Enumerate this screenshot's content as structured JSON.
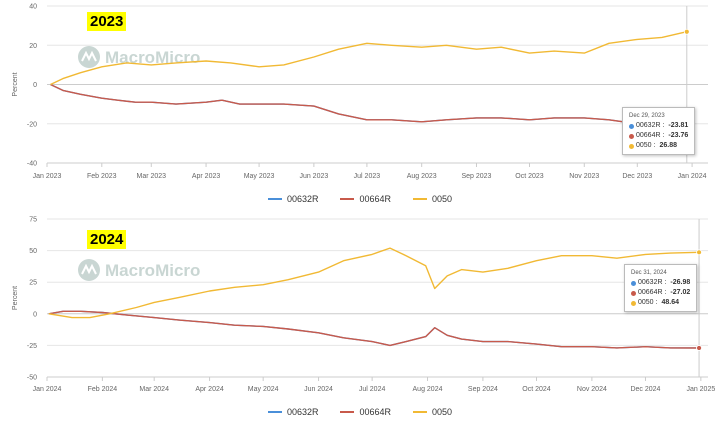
{
  "colors": {
    "s00632R": "#4a8fd9",
    "s00664R": "#c85a4b",
    "s0050": "#f1b934",
    "watermark": "#c9d6d3",
    "badge": "#ffff00"
  },
  "watermark_text": "MacroMicro",
  "legend": [
    "00632R",
    "00664R",
    "0050"
  ],
  "chart_data": [
    {
      "type": "line",
      "badge": "2023",
      "ylabel": "Percent",
      "ylim": [
        -40,
        40
      ],
      "yticks": [
        40,
        20,
        0,
        -20,
        -40
      ],
      "xlim": [
        "2023-01-01",
        "2024-01-10"
      ],
      "xticks": [
        {
          "date": "2023-01-01",
          "label": "Jan 2023"
        },
        {
          "date": "2023-02-01",
          "label": "Feb 2023"
        },
        {
          "date": "2023-03-01",
          "label": "Mar 2023"
        },
        {
          "date": "2023-04-01",
          "label": "Apr 2023"
        },
        {
          "date": "2023-05-01",
          "label": "May 2023"
        },
        {
          "date": "2023-06-01",
          "label": "Jun 2023"
        },
        {
          "date": "2023-07-01",
          "label": "Jul 2023"
        },
        {
          "date": "2023-08-01",
          "label": "Aug 2023"
        },
        {
          "date": "2023-09-01",
          "label": "Sep 2023"
        },
        {
          "date": "2023-10-01",
          "label": "Oct 2023"
        },
        {
          "date": "2023-11-01",
          "label": "Nov 2023"
        },
        {
          "date": "2023-12-01",
          "label": "Dec 2023"
        },
        {
          "date": "2024-01-01",
          "label": "Jan 2024"
        }
      ],
      "series": [
        {
          "name": "00632R",
          "color": "#4a8fd9",
          "points": [
            [
              "2023-01-03",
              0
            ],
            [
              "2023-01-10",
              -3
            ],
            [
              "2023-01-20",
              -5
            ],
            [
              "2023-02-01",
              -7
            ],
            [
              "2023-02-10",
              -8
            ],
            [
              "2023-02-20",
              -9
            ],
            [
              "2023-03-01",
              -9
            ],
            [
              "2023-03-15",
              -10
            ],
            [
              "2023-04-01",
              -9
            ],
            [
              "2023-04-10",
              -8
            ],
            [
              "2023-04-20",
              -10
            ],
            [
              "2023-05-01",
              -10
            ],
            [
              "2023-05-15",
              -10
            ],
            [
              "2023-06-01",
              -11
            ],
            [
              "2023-06-15",
              -15
            ],
            [
              "2023-07-01",
              -18
            ],
            [
              "2023-07-15",
              -18
            ],
            [
              "2023-08-01",
              -19
            ],
            [
              "2023-08-15",
              -18
            ],
            [
              "2023-09-01",
              -17
            ],
            [
              "2023-09-15",
              -17
            ],
            [
              "2023-10-01",
              -18
            ],
            [
              "2023-10-15",
              -17
            ],
            [
              "2023-11-01",
              -17
            ],
            [
              "2023-11-15",
              -18
            ],
            [
              "2023-12-01",
              -20
            ],
            [
              "2023-12-15",
              -21
            ],
            [
              "2023-12-29",
              -23.81
            ]
          ]
        },
        {
          "name": "00664R",
          "color": "#c85a4b",
          "points": [
            [
              "2023-01-03",
              0
            ],
            [
              "2023-01-10",
              -3
            ],
            [
              "2023-01-20",
              -5
            ],
            [
              "2023-02-01",
              -7
            ],
            [
              "2023-02-10",
              -8
            ],
            [
              "2023-02-20",
              -9
            ],
            [
              "2023-03-01",
              -9
            ],
            [
              "2023-03-15",
              -10
            ],
            [
              "2023-04-01",
              -9
            ],
            [
              "2023-04-10",
              -8
            ],
            [
              "2023-04-20",
              -10
            ],
            [
              "2023-05-01",
              -10
            ],
            [
              "2023-05-15",
              -10
            ],
            [
              "2023-06-01",
              -11
            ],
            [
              "2023-06-15",
              -15
            ],
            [
              "2023-07-01",
              -18
            ],
            [
              "2023-07-15",
              -18
            ],
            [
              "2023-08-01",
              -19
            ],
            [
              "2023-08-15",
              -18
            ],
            [
              "2023-09-01",
              -17
            ],
            [
              "2023-09-15",
              -17
            ],
            [
              "2023-10-01",
              -18
            ],
            [
              "2023-10-15",
              -17
            ],
            [
              "2023-11-01",
              -17
            ],
            [
              "2023-11-15",
              -18
            ],
            [
              "2023-12-01",
              -20
            ],
            [
              "2023-12-15",
              -21
            ],
            [
              "2023-12-29",
              -23.76
            ]
          ]
        },
        {
          "name": "0050",
          "color": "#f1b934",
          "points": [
            [
              "2023-01-03",
              0
            ],
            [
              "2023-01-10",
              3
            ],
            [
              "2023-01-20",
              6
            ],
            [
              "2023-02-01",
              9
            ],
            [
              "2023-02-15",
              11
            ],
            [
              "2023-03-01",
              10
            ],
            [
              "2023-03-15",
              11
            ],
            [
              "2023-04-01",
              12
            ],
            [
              "2023-04-15",
              11
            ],
            [
              "2023-05-01",
              9
            ],
            [
              "2023-05-15",
              10
            ],
            [
              "2023-06-01",
              14
            ],
            [
              "2023-06-15",
              18
            ],
            [
              "2023-07-01",
              21
            ],
            [
              "2023-07-15",
              20
            ],
            [
              "2023-08-01",
              19
            ],
            [
              "2023-08-15",
              20
            ],
            [
              "2023-09-01",
              18
            ],
            [
              "2023-09-15",
              19
            ],
            [
              "2023-10-01",
              16
            ],
            [
              "2023-10-15",
              17
            ],
            [
              "2023-11-01",
              16
            ],
            [
              "2023-11-15",
              21
            ],
            [
              "2023-12-01",
              23
            ],
            [
              "2023-12-15",
              24
            ],
            [
              "2023-12-29",
              26.88
            ]
          ]
        }
      ],
      "tooltip": {
        "date": "Dec 29, 2023",
        "rows": [
          {
            "name": "00632R",
            "value": "-23.81",
            "color": "#4a8fd9"
          },
          {
            "name": "00664R",
            "value": "-23.76",
            "color": "#c85a4b"
          },
          {
            "name": "0050",
            "value": "26.88",
            "color": "#f1b934"
          }
        ]
      }
    },
    {
      "type": "line",
      "badge": "2024",
      "ylabel": "Percent",
      "ylim": [
        -50,
        75
      ],
      "yticks": [
        75,
        50,
        25,
        0,
        -25,
        -50
      ],
      "xlim": [
        "2024-01-01",
        "2025-01-05"
      ],
      "xticks": [
        {
          "date": "2024-01-01",
          "label": "Jan 2024"
        },
        {
          "date": "2024-02-01",
          "label": "Feb 2024"
        },
        {
          "date": "2024-03-01",
          "label": "Mar 2024"
        },
        {
          "date": "2024-04-01",
          "label": "Apr 2024"
        },
        {
          "date": "2024-05-01",
          "label": "May 2024"
        },
        {
          "date": "2024-06-01",
          "label": "Jun 2024"
        },
        {
          "date": "2024-07-01",
          "label": "Jul 2024"
        },
        {
          "date": "2024-08-01",
          "label": "Aug 2024"
        },
        {
          "date": "2024-09-01",
          "label": "Sep 2024"
        },
        {
          "date": "2024-10-01",
          "label": "Oct 2024"
        },
        {
          "date": "2024-11-01",
          "label": "Nov 2024"
        },
        {
          "date": "2024-12-01",
          "label": "Dec 2024"
        },
        {
          "date": "2025-01-01",
          "label": "Jan 2025"
        }
      ],
      "series": [
        {
          "name": "00632R",
          "color": "#4a8fd9",
          "points": [
            [
              "2024-01-02",
              0
            ],
            [
              "2024-01-10",
              2
            ],
            [
              "2024-01-20",
              2
            ],
            [
              "2024-02-01",
              1
            ],
            [
              "2024-02-15",
              -1
            ],
            [
              "2024-03-01",
              -3
            ],
            [
              "2024-03-15",
              -5
            ],
            [
              "2024-04-01",
              -7
            ],
            [
              "2024-04-15",
              -9
            ],
            [
              "2024-05-01",
              -10
            ],
            [
              "2024-05-15",
              -12
            ],
            [
              "2024-06-01",
              -15
            ],
            [
              "2024-06-15",
              -19
            ],
            [
              "2024-07-01",
              -22
            ],
            [
              "2024-07-11",
              -25
            ],
            [
              "2024-07-20",
              -22
            ],
            [
              "2024-07-31",
              -18
            ],
            [
              "2024-08-05",
              -11
            ],
            [
              "2024-08-12",
              -17
            ],
            [
              "2024-08-20",
              -20
            ],
            [
              "2024-09-01",
              -22
            ],
            [
              "2024-09-15",
              -22
            ],
            [
              "2024-10-01",
              -24
            ],
            [
              "2024-10-15",
              -26
            ],
            [
              "2024-11-01",
              -26
            ],
            [
              "2024-11-15",
              -27
            ],
            [
              "2024-12-01",
              -26
            ],
            [
              "2024-12-15",
              -27
            ],
            [
              "2024-12-31",
              -26.98
            ]
          ]
        },
        {
          "name": "00664R",
          "color": "#c85a4b",
          "points": [
            [
              "2024-01-02",
              0
            ],
            [
              "2024-01-10",
              2
            ],
            [
              "2024-01-20",
              2
            ],
            [
              "2024-02-01",
              1
            ],
            [
              "2024-02-15",
              -1
            ],
            [
              "2024-03-01",
              -3
            ],
            [
              "2024-03-15",
              -5
            ],
            [
              "2024-04-01",
              -7
            ],
            [
              "2024-04-15",
              -9
            ],
            [
              "2024-05-01",
              -10
            ],
            [
              "2024-05-15",
              -12
            ],
            [
              "2024-06-01",
              -15
            ],
            [
              "2024-06-15",
              -19
            ],
            [
              "2024-07-01",
              -22
            ],
            [
              "2024-07-11",
              -25
            ],
            [
              "2024-07-20",
              -22
            ],
            [
              "2024-07-31",
              -18
            ],
            [
              "2024-08-05",
              -11
            ],
            [
              "2024-08-12",
              -17
            ],
            [
              "2024-08-20",
              -20
            ],
            [
              "2024-09-01",
              -22
            ],
            [
              "2024-09-15",
              -22
            ],
            [
              "2024-10-01",
              -24
            ],
            [
              "2024-10-15",
              -26
            ],
            [
              "2024-11-01",
              -26
            ],
            [
              "2024-11-15",
              -27
            ],
            [
              "2024-12-01",
              -26
            ],
            [
              "2024-12-15",
              -27
            ],
            [
              "2024-12-31",
              -27.02
            ]
          ]
        },
        {
          "name": "0050",
          "color": "#f1b934",
          "points": [
            [
              "2024-01-02",
              0
            ],
            [
              "2024-01-15",
              -3
            ],
            [
              "2024-01-25",
              -3
            ],
            [
              "2024-02-05",
              0
            ],
            [
              "2024-02-20",
              5
            ],
            [
              "2024-03-01",
              9
            ],
            [
              "2024-03-15",
              13
            ],
            [
              "2024-04-01",
              18
            ],
            [
              "2024-04-15",
              21
            ],
            [
              "2024-05-01",
              23
            ],
            [
              "2024-05-15",
              27
            ],
            [
              "2024-06-01",
              33
            ],
            [
              "2024-06-15",
              42
            ],
            [
              "2024-07-01",
              47
            ],
            [
              "2024-07-11",
              52
            ],
            [
              "2024-07-20",
              46
            ],
            [
              "2024-07-31",
              38
            ],
            [
              "2024-08-05",
              20
            ],
            [
              "2024-08-12",
              30
            ],
            [
              "2024-08-20",
              35
            ],
            [
              "2024-09-01",
              33
            ],
            [
              "2024-09-15",
              36
            ],
            [
              "2024-10-01",
              42
            ],
            [
              "2024-10-15",
              46
            ],
            [
              "2024-11-01",
              46
            ],
            [
              "2024-11-15",
              44
            ],
            [
              "2024-12-01",
              47
            ],
            [
              "2024-12-15",
              48
            ],
            [
              "2024-12-31",
              48.64
            ]
          ]
        }
      ],
      "tooltip": {
        "date": "Dec 31, 2024",
        "rows": [
          {
            "name": "00632R",
            "value": "-26.98",
            "color": "#4a8fd9"
          },
          {
            "name": "00664R",
            "value": "-27.02",
            "color": "#c85a4b"
          },
          {
            "name": "0050",
            "value": "48.64",
            "color": "#f1b934"
          }
        ]
      }
    }
  ]
}
